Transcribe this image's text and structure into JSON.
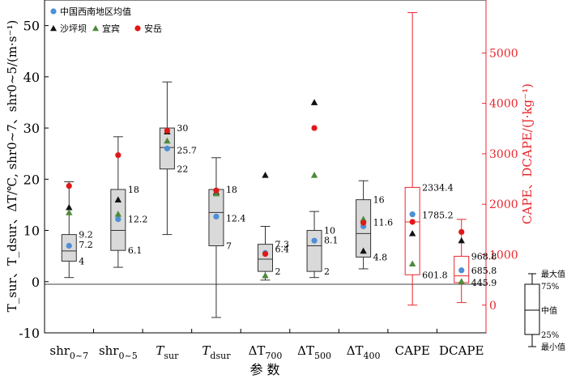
{
  "chart_data": {
    "type": "box",
    "title": "",
    "xlabel": "参 数",
    "ylabel_left": "T_sur、T_dsur、ΔT/℃, shr0~7、shr0~5/(m·s⁻¹)",
    "ylabel_right": "CAPE、DCAPE/(J·kg⁻¹)",
    "ylim_left": [
      -10,
      55
    ],
    "yticks_left": [
      -10,
      0,
      10,
      20,
      30,
      40,
      50
    ],
    "ylim_right": [
      -550,
      6050
    ],
    "yticks_right": [
      0,
      1000,
      2000,
      3000,
      4000,
      5000
    ],
    "categories": [
      {
        "id": "shr07",
        "label": "shr",
        "sub": "0~7",
        "axis": "left"
      },
      {
        "id": "shr05",
        "label": "shr",
        "sub": "0~5",
        "axis": "left"
      },
      {
        "id": "tsur",
        "label": "T",
        "sub": "sur",
        "axis": "left"
      },
      {
        "id": "tdsur",
        "label": "T",
        "sub": "dsur",
        "axis": "left"
      },
      {
        "id": "dt700",
        "label": "ΔT",
        "sub": "700",
        "axis": "left"
      },
      {
        "id": "dt500",
        "label": "ΔT",
        "sub": "500",
        "axis": "left"
      },
      {
        "id": "dt400",
        "label": "ΔT",
        "sub": "400",
        "axis": "left"
      },
      {
        "id": "cape",
        "label": "CAPE",
        "sub": "",
        "axis": "right"
      },
      {
        "id": "dcape",
        "label": "DCAPE",
        "sub": "",
        "axis": "right"
      }
    ],
    "boxes": [
      {
        "min": 0.8,
        "q1": 4,
        "median": 6,
        "q3": 9.2,
        "max": 19.5
      },
      {
        "min": 2.8,
        "q1": 6.1,
        "median": 10,
        "q3": 18,
        "max": 28.3
      },
      {
        "min": 9.2,
        "q1": 22,
        "median": 26.2,
        "q3": 30,
        "max": 39
      },
      {
        "min": -7,
        "q1": 7,
        "median": 13.5,
        "q3": 18,
        "max": 24.2
      },
      {
        "min": 0.3,
        "q1": 2,
        "median": 4.4,
        "q3": 7.3,
        "max": 10.8
      },
      {
        "min": 0.8,
        "q1": 2,
        "median": 7,
        "q3": 10,
        "max": 13.7
      },
      {
        "min": 2.5,
        "q1": 4.8,
        "median": 9.4,
        "q3": 16,
        "max": 19.7
      },
      {
        "min": 0,
        "q1": 601.8,
        "median": 1650,
        "q3": 2334.4,
        "max": 5800
      },
      {
        "min": 50,
        "q1": 445.9,
        "median": 580,
        "q3": 968.8,
        "max": 1700
      }
    ],
    "value_labels": [
      {
        "cat": 0,
        "text": "9.2",
        "value": 9.2
      },
      {
        "cat": 0,
        "text": "7.2",
        "value": 7.2
      },
      {
        "cat": 0,
        "text": "4",
        "value": 4
      },
      {
        "cat": 1,
        "text": "18",
        "value": 18
      },
      {
        "cat": 1,
        "text": "12.2",
        "value": 12.2
      },
      {
        "cat": 1,
        "text": "6.1",
        "value": 6.1
      },
      {
        "cat": 2,
        "text": "30",
        "value": 30
      },
      {
        "cat": 2,
        "text": "25.7",
        "value": 25.7
      },
      {
        "cat": 2,
        "text": "22",
        "value": 22
      },
      {
        "cat": 3,
        "text": "18",
        "value": 18
      },
      {
        "cat": 3,
        "text": "12.4",
        "value": 12.4
      },
      {
        "cat": 3,
        "text": "7",
        "value": 7
      },
      {
        "cat": 4,
        "text": "7.3",
        "value": 7.3
      },
      {
        "cat": 4,
        "text": "6.4",
        "value": 6.4
      },
      {
        "cat": 4,
        "text": "2",
        "value": 2
      },
      {
        "cat": 5,
        "text": "10",
        "value": 10
      },
      {
        "cat": 5,
        "text": "8.1",
        "value": 8.1
      },
      {
        "cat": 5,
        "text": "2",
        "value": 2
      },
      {
        "cat": 6,
        "text": "16",
        "value": 16
      },
      {
        "cat": 6,
        "text": "11.6",
        "value": 11.6
      },
      {
        "cat": 6,
        "text": "4.8",
        "value": 4.8
      },
      {
        "cat": 7,
        "text": "2334.4",
        "value": 2334.4
      },
      {
        "cat": 7,
        "text": "1785.2",
        "value": 1785.2
      },
      {
        "cat": 7,
        "text": "601.8",
        "value": 601.8
      },
      {
        "cat": 8,
        "text": "968.8",
        "value": 968.8
      },
      {
        "cat": 8,
        "text": "685.8",
        "value": 685.8
      },
      {
        "cat": 8,
        "text": "445.9",
        "value": 445.9
      }
    ],
    "series": [
      {
        "name": "中国西南地区均值",
        "marker": "circle",
        "color": "#4d8fd6",
        "values": [
          7,
          12.2,
          26,
          12.7,
          5.6,
          8,
          10.8,
          1800,
          690
        ]
      },
      {
        "name": "沙坪坝",
        "marker": "triangle",
        "color": "#111111",
        "values": [
          14.5,
          16,
          29.3,
          17.5,
          20.8,
          35,
          6,
          1420,
          1280
        ]
      },
      {
        "name": "宜宾",
        "marker": "triangle",
        "color": "#4e8a3a",
        "values": [
          13.5,
          13.2,
          27.5,
          17.2,
          1.2,
          20.8,
          12.2,
          820,
          470
        ]
      },
      {
        "name": "安岳",
        "marker": "circle",
        "color": "#e01818",
        "values": [
          18.7,
          24.7,
          29.5,
          17.8,
          5.4,
          30,
          11.5,
          1650,
          1450
        ]
      }
    ],
    "legend_placement": "top-left",
    "box_key": {
      "labels": [
        "最大值",
        "75%",
        "中值",
        "25%",
        "最小值"
      ]
    },
    "grid": false,
    "colors": {
      "box_fill": "#d9d9d9",
      "right_axis": "#e8262c",
      "cape_box_stroke": "#e8262c"
    }
  }
}
